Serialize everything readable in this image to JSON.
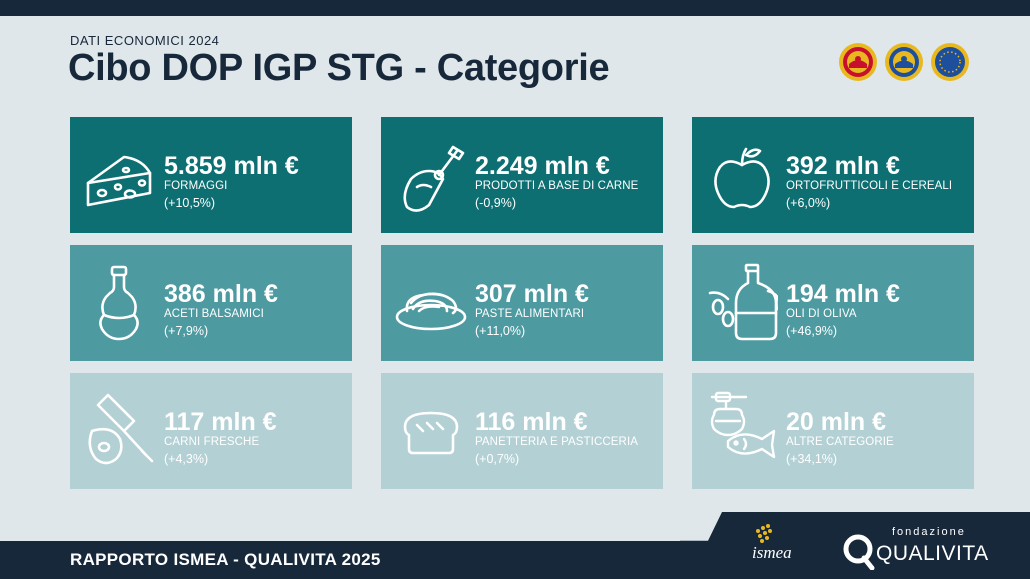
{
  "header": {
    "kicker": "DATI ECONOMICI 2024",
    "title": "Cibo DOP IGP STG - Categorie",
    "seals": [
      "dop-seal-icon",
      "igp-seal-icon",
      "stg-seal-icon"
    ]
  },
  "colors": {
    "row1": "#0d6f72",
    "row2": "#4d9aa1",
    "row3": "#b3d0d4",
    "dark": "#17283b"
  },
  "categories": [
    {
      "value": "5.859 mln €",
      "label": "FORMAGGI",
      "change": "(+10,5%)",
      "icon": "cheese-icon"
    },
    {
      "value": "2.249 mln €",
      "label": "PRODOTTI A BASE DI CARNE",
      "change": "(-0,9%)",
      "icon": "ham-icon"
    },
    {
      "value": "392 mln €",
      "label": "ORTOFRUTTICOLI E CEREALI",
      "change": "(+6,0%)",
      "icon": "apple-icon"
    },
    {
      "value": "386 mln €",
      "label": "ACETI BALSAMICI",
      "change": "(+7,9%)",
      "icon": "vinegar-bottle-icon"
    },
    {
      "value": "307 mln €",
      "label": "PASTE ALIMENTARI",
      "change": "(+11,0%)",
      "icon": "pasta-plate-icon"
    },
    {
      "value": "194 mln €",
      "label": "OLI DI OLIVA",
      "change": "(+46,9%)",
      "icon": "olive-oil-icon"
    },
    {
      "value": "117 mln €",
      "label": "CARNI FRESCHE",
      "change": "(+4,3%)",
      "icon": "cleaver-meat-icon"
    },
    {
      "value": "116 mln €",
      "label": "PANETTERIA E PASTICCERIA",
      "change": "(+0,7%)",
      "icon": "bread-icon"
    },
    {
      "value": "20 mln €",
      "label": "ALTRE CATEGORIE",
      "change": "(+34,1%)",
      "icon": "honey-fish-icon"
    }
  ],
  "footer": {
    "report": "RAPPORTO ISMEA - QUALIVITA 2025",
    "ismea": "ismea",
    "fondazione": "fondazione",
    "qualivita": "QUALIVITA"
  }
}
